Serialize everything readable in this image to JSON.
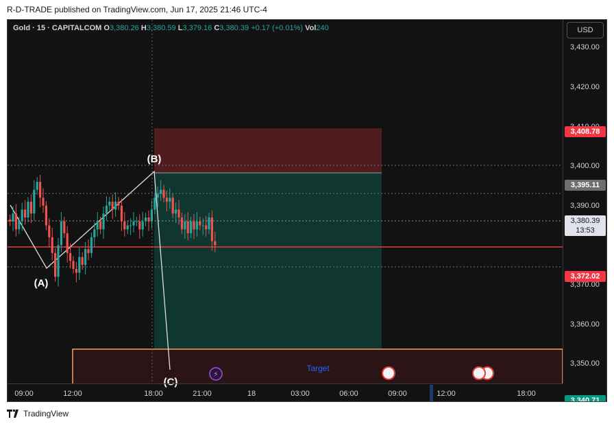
{
  "header": {
    "published": "R-D-TRADE published on TradingView.com, Jun 17, 2025 21:46 UTC-4"
  },
  "legend": {
    "symbol": "Gold · 15 · CAPITALCOM",
    "o_label": "O",
    "o": "3,380.26",
    "h_label": "H",
    "h": "3,380.59",
    "l_label": "L",
    "l": "3,379.16",
    "c_label": "C",
    "c": "3,380.39",
    "change": "+0.17 (+0.01%)",
    "vol_label": "Vol",
    "vol": "240"
  },
  "currency_button": "USD",
  "y_ticks": [
    "3,430.00",
    "3,420.00",
    "3,410.00",
    "3,400.00",
    "3,390.00",
    "3,370.00",
    "3,360.00",
    "3,350.00"
  ],
  "y_tick_values": [
    3430,
    3420,
    3410,
    3400,
    3390,
    3370,
    3360,
    3350
  ],
  "price_tags": [
    {
      "label": "3,408.78",
      "value": 3408.78,
      "color": "#f23645"
    },
    {
      "label": "3,395.11",
      "value": 3395.11,
      "color": "#6e6e6e"
    },
    {
      "label": "3,372.02",
      "value": 3372.02,
      "color": "#f23645"
    },
    {
      "label": "3,340.71",
      "value": 3340.71,
      "color": "#089981"
    }
  ],
  "last_price": {
    "label": "3,380.39",
    "countdown": "13:53",
    "value": 3380.39
  },
  "x_ticks": [
    "09:00",
    "12:00",
    "18:00",
    "21:00",
    "18",
    "03:00",
    "06:00",
    "09:00",
    "12:00",
    "18:00"
  ],
  "wave_labels": {
    "a": "(A)",
    "b": "(B)",
    "c": "(C)"
  },
  "target_label": "Target",
  "footer": {
    "brand": "TradingView"
  },
  "colors": {
    "up": "#26a69a",
    "down": "#ef5350",
    "stop_zone": "#5b1e22",
    "target_zone": "#0f3b33",
    "horizontal_line": "#f23645",
    "target_box": "#f7a156"
  },
  "chart_data": {
    "type": "candlestick",
    "ylim": [
      3345,
      3437
    ],
    "levels": {
      "stop": 3408.78,
      "entry": 3395.11,
      "support": 3372.02,
      "target": 3340.71,
      "last": 3380.39
    },
    "closes": [
      3386,
      3388,
      3384,
      3386,
      3389,
      3387,
      3391,
      3388,
      3394,
      3396,
      3392,
      3390,
      3385,
      3382,
      3378,
      3372,
      3380,
      3386,
      3383,
      3378,
      3376,
      3374,
      3373,
      3377,
      3375,
      3379,
      3378,
      3382,
      3384,
      3386,
      3384,
      3388,
      3390,
      3391,
      3389,
      3391,
      3390,
      3386,
      3384,
      3385,
      3385,
      3386,
      3386,
      3384,
      3386,
      3387,
      3386,
      3389,
      3392,
      3393,
      3394,
      3392,
      3391,
      3392,
      3388,
      3389,
      3387,
      3384,
      3386,
      3383,
      3386,
      3384,
      3386,
      3385,
      3385,
      3384,
      3387,
      3381,
      3380
    ]
  }
}
